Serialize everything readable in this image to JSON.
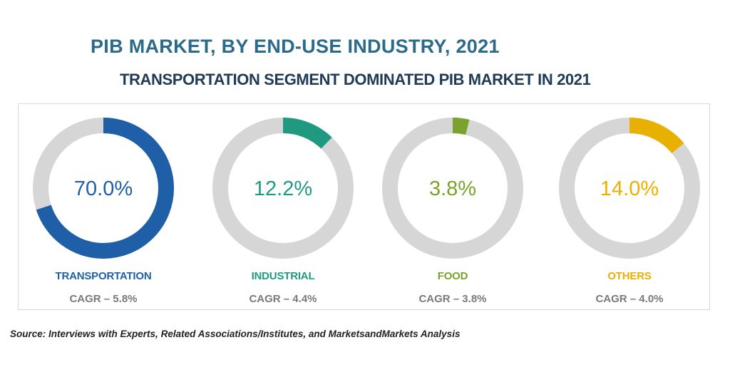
{
  "title": "PIB MARKET, BY END-USE INDUSTRY, 2021",
  "subtitle": "TRANSPORTATION SEGMENT DOMINATED PIB MARKET IN 2021",
  "source": "Source: Interviews with Experts, Related Associations/Institutes, and MarketsandMarkets Analysis",
  "colors": {
    "title": "#2b6a8a",
    "track": "#d6d6d6",
    "transportation": "#1f5fa8",
    "industrial": "#1f9a80",
    "food": "#7aa32e",
    "others": "#e8b000"
  },
  "chart_data": [
    {
      "type": "pie",
      "category": "TRANSPORTATION",
      "value": 70.0,
      "value_label": "70.0%",
      "cagr": "CAGR – 5.8%",
      "color": "#1f5fa8"
    },
    {
      "type": "pie",
      "category": "INDUSTRIAL",
      "value": 12.2,
      "value_label": "12.2%",
      "cagr": "CAGR – 4.4%",
      "color": "#1f9a80"
    },
    {
      "type": "pie",
      "category": "FOOD",
      "value": 3.8,
      "value_label": "3.8%",
      "cagr": "CAGR – 3.8%",
      "color": "#7aa32e"
    },
    {
      "type": "pie",
      "category": "OTHERS",
      "value": 14.0,
      "value_label": "14.0%",
      "cagr": "CAGR – 4.0%",
      "color": "#e8b000"
    }
  ]
}
